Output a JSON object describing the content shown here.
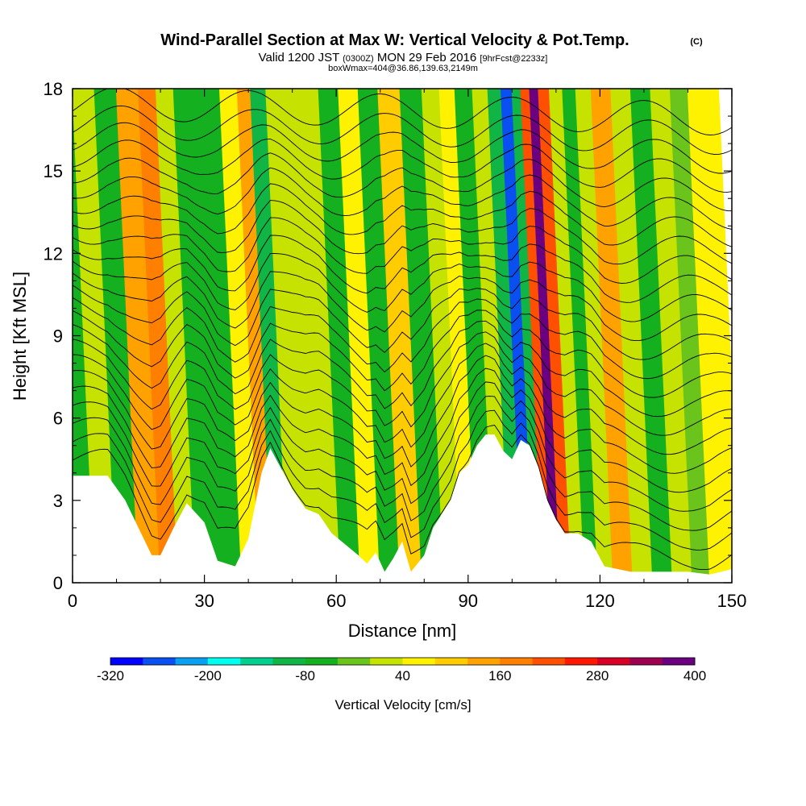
{
  "chart_data": {
    "type": "heatmap",
    "title": "Wind-Parallel Section at Max W: Vertical Velocity & Pot.Temp.",
    "title_mark": "(C)",
    "subtitle_main": "Valid 1200 JST",
    "subtitle_utc": "(0300Z)",
    "subtitle_date": "MON 29 Feb 2016",
    "subtitle_fcst": "[9hrFcst@2233z]",
    "subtitle2": "boxWmax=404@36.86,139.63,2149m",
    "xlabel": "Distance [nm]",
    "ylabel": "Height [Kft MSL]",
    "xlim": [
      0,
      150
    ],
    "ylim": [
      0,
      18
    ],
    "x_ticks": [
      "0",
      "30",
      "60",
      "90",
      "120",
      "150"
    ],
    "y_ticks": [
      "0",
      "3",
      "6",
      "9",
      "12",
      "15",
      "18"
    ],
    "colorbar": {
      "label": "Vertical Velocity [cm/s]",
      "tick_labels": [
        "-320",
        "-200",
        "-80",
        "40",
        "160",
        "280",
        "400"
      ],
      "levels": [
        -320,
        -280,
        -240,
        -200,
        -160,
        -120,
        -80,
        -40,
        0,
        40,
        80,
        120,
        160,
        200,
        240,
        280,
        320,
        360,
        400
      ],
      "colors": [
        "#0000ff",
        "#0a4ff0",
        "#0aa0f0",
        "#00ffee",
        "#00d08f",
        "#10b545",
        "#14b020",
        "#6bc41c",
        "#c6e200",
        "#fff200",
        "#ffcc00",
        "#ffa200",
        "#ff7f00",
        "#ff4f00",
        "#ff1800",
        "#d80024",
        "#9e0050",
        "#6a0080"
      ]
    },
    "terrain_x": [
      0,
      8,
      12,
      15,
      18,
      20,
      23,
      26,
      30,
      33,
      37,
      40,
      43,
      45,
      47,
      50,
      53,
      56,
      59,
      62,
      65,
      67,
      69,
      71,
      73,
      75,
      77,
      80,
      82,
      84,
      86,
      88,
      90,
      92,
      94,
      96,
      98,
      100,
      102,
      104,
      106,
      108,
      110,
      112,
      115,
      118,
      121,
      124,
      127,
      130,
      135,
      140,
      145,
      150
    ],
    "terrain_y": [
      3.9,
      3.9,
      3.0,
      2.0,
      1.0,
      1.0,
      2.0,
      2.9,
      2.2,
      0.8,
      0.6,
      1.6,
      4.0,
      4.9,
      4.3,
      3.4,
      2.7,
      2.5,
      1.8,
      1.4,
      1.0,
      0.7,
      1.1,
      0.4,
      0.9,
      1.5,
      0.4,
      1.0,
      2.0,
      2.5,
      3.0,
      4.0,
      4.3,
      5.0,
      5.4,
      5.4,
      4.8,
      4.5,
      5.2,
      5.0,
      4.2,
      3.0,
      2.3,
      1.8,
      1.8,
      1.5,
      0.6,
      0.5,
      0.4,
      0.4,
      0.4,
      0.4,
      0.3,
      0.5
    ],
    "w_bands": [
      {
        "x": 2,
        "w": -60
      },
      {
        "x": 8,
        "w": 20
      },
      {
        "x": 12,
        "w": -70
      },
      {
        "x": 18,
        "w": 120
      },
      {
        "x": 22,
        "w": 160
      },
      {
        "x": 26,
        "w": 20
      },
      {
        "x": 30,
        "w": -80
      },
      {
        "x": 36,
        "w": -60
      },
      {
        "x": 41,
        "w": 60
      },
      {
        "x": 44,
        "w": 150
      },
      {
        "x": 47,
        "w": -100
      },
      {
        "x": 51,
        "w": 10
      },
      {
        "x": 55,
        "w": 20
      },
      {
        "x": 59,
        "w": 10
      },
      {
        "x": 63,
        "w": -50
      },
      {
        "x": 68,
        "w": 60
      },
      {
        "x": 72,
        "w": -60
      },
      {
        "x": 77,
        "w": 90
      },
      {
        "x": 82,
        "w": -60
      },
      {
        "x": 87,
        "w": 30
      },
      {
        "x": 90,
        "w": 60
      },
      {
        "x": 94,
        "w": -50
      },
      {
        "x": 98,
        "w": 0
      },
      {
        "x": 101,
        "w": -100
      },
      {
        "x": 104,
        "w": -250
      },
      {
        "x": 106,
        "w": -100
      },
      {
        "x": 108,
        "w": 200
      },
      {
        "x": 110,
        "w": 360
      },
      {
        "x": 112,
        "w": 200
      },
      {
        "x": 115,
        "w": 20
      },
      {
        "x": 118,
        "w": -60
      },
      {
        "x": 121,
        "w": 30
      },
      {
        "x": 125,
        "w": 120
      },
      {
        "x": 130,
        "w": 0
      },
      {
        "x": 134,
        "w": -80
      },
      {
        "x": 139,
        "w": 20
      },
      {
        "x": 143,
        "w": -40
      },
      {
        "x": 147,
        "w": 40
      },
      {
        "x": 150,
        "w": 50
      }
    ],
    "theta_contour_count": 24
  }
}
